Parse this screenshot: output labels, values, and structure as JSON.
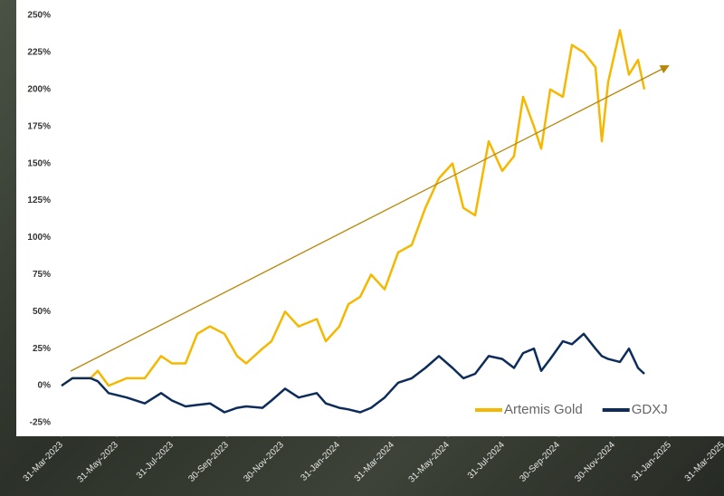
{
  "chart_data": {
    "type": "line",
    "x": [
      "2023-03-31",
      "2023-04-12",
      "2023-05-02",
      "2023-05-10",
      "2023-05-22",
      "2023-06-11",
      "2023-07-01",
      "2023-07-19",
      "2023-07-31",
      "2023-08-15",
      "2023-08-28",
      "2023-09-11",
      "2023-09-27",
      "2023-10-11",
      "2023-10-21",
      "2023-11-08",
      "2023-11-18",
      "2023-12-03",
      "2023-12-18",
      "2024-01-07",
      "2024-01-17",
      "2024-02-01",
      "2024-02-11",
      "2024-02-24",
      "2024-03-07",
      "2024-03-22",
      "2024-04-06",
      "2024-04-21",
      "2024-05-06",
      "2024-05-21",
      "2024-06-05",
      "2024-06-17",
      "2024-06-30",
      "2024-07-15",
      "2024-07-30",
      "2024-08-12",
      "2024-08-22",
      "2024-09-03",
      "2024-09-11",
      "2024-09-21",
      "2024-10-05",
      "2024-10-15",
      "2024-10-28",
      "2024-11-10",
      "2024-11-17",
      "2024-11-24",
      "2024-12-07",
      "2024-12-17",
      "2024-12-27",
      "2025-01-03"
    ],
    "series": [
      {
        "name": "Artemis Gold",
        "color": "#f5b800",
        "values": [
          0,
          5,
          5,
          10,
          0,
          5,
          5,
          20,
          15,
          15,
          35,
          40,
          35,
          20,
          15,
          25,
          30,
          50,
          40,
          45,
          30,
          40,
          55,
          60,
          75,
          65,
          90,
          95,
          120,
          140,
          150,
          120,
          115,
          165,
          145,
          155,
          195,
          175,
          160,
          200,
          195,
          230,
          225,
          215,
          165,
          205,
          240,
          210,
          220,
          200
        ]
      },
      {
        "name": "GDXJ",
        "color": "#0d2c5a",
        "values": [
          0,
          5,
          5,
          3,
          -5,
          -8,
          -12,
          -5,
          -10,
          -14,
          -13,
          -12,
          -18,
          -15,
          -14,
          -15,
          -10,
          -2,
          -8,
          -5,
          -12,
          -15,
          -16,
          -18,
          -15,
          -8,
          2,
          5,
          12,
          20,
          12,
          5,
          8,
          20,
          18,
          12,
          22,
          25,
          10,
          18,
          30,
          28,
          35,
          25,
          20,
          18,
          16,
          25,
          12,
          8
        ]
      }
    ],
    "xlim": [
      "2023-03-31",
      "2025-03-31"
    ],
    "xticks": [
      {
        "value": "2023-03-31",
        "label": "31-Mar-2023"
      },
      {
        "value": "2023-05-31",
        "label": "31-May-2023"
      },
      {
        "value": "2023-07-31",
        "label": "31-Jul-2023"
      },
      {
        "value": "2023-09-30",
        "label": "30-Sep-2023"
      },
      {
        "value": "2023-11-30",
        "label": "30-Nov-2023"
      },
      {
        "value": "2024-01-31",
        "label": "31-Jan-2024"
      },
      {
        "value": "2024-03-31",
        "label": "31-Mar-2024"
      },
      {
        "value": "2024-05-31",
        "label": "31-May-2024"
      },
      {
        "value": "2024-07-31",
        "label": "31-Jul-2024"
      },
      {
        "value": "2024-09-30",
        "label": "30-Sep-2024"
      },
      {
        "value": "2024-11-30",
        "label": "30-Nov-2024"
      },
      {
        "value": "2025-01-31",
        "label": "31-Jan-2025"
      },
      {
        "value": "2025-03-31",
        "label": "31-Mar-2025"
      }
    ],
    "ylim": [
      -25,
      250
    ],
    "yticks": [
      {
        "value": -25,
        "label": "-25%"
      },
      {
        "value": 0,
        "label": "0%"
      },
      {
        "value": 25,
        "label": "25%"
      },
      {
        "value": 50,
        "label": "50%"
      },
      {
        "value": 75,
        "label": "75%"
      },
      {
        "value": 100,
        "label": "100%"
      },
      {
        "value": 125,
        "label": "125%"
      },
      {
        "value": 150,
        "label": "150%"
      },
      {
        "value": 175,
        "label": "175%"
      },
      {
        "value": 200,
        "label": "200%"
      },
      {
        "value": 225,
        "label": "225%"
      },
      {
        "value": 250,
        "label": "250%"
      }
    ],
    "legend": "lower right"
  }
}
